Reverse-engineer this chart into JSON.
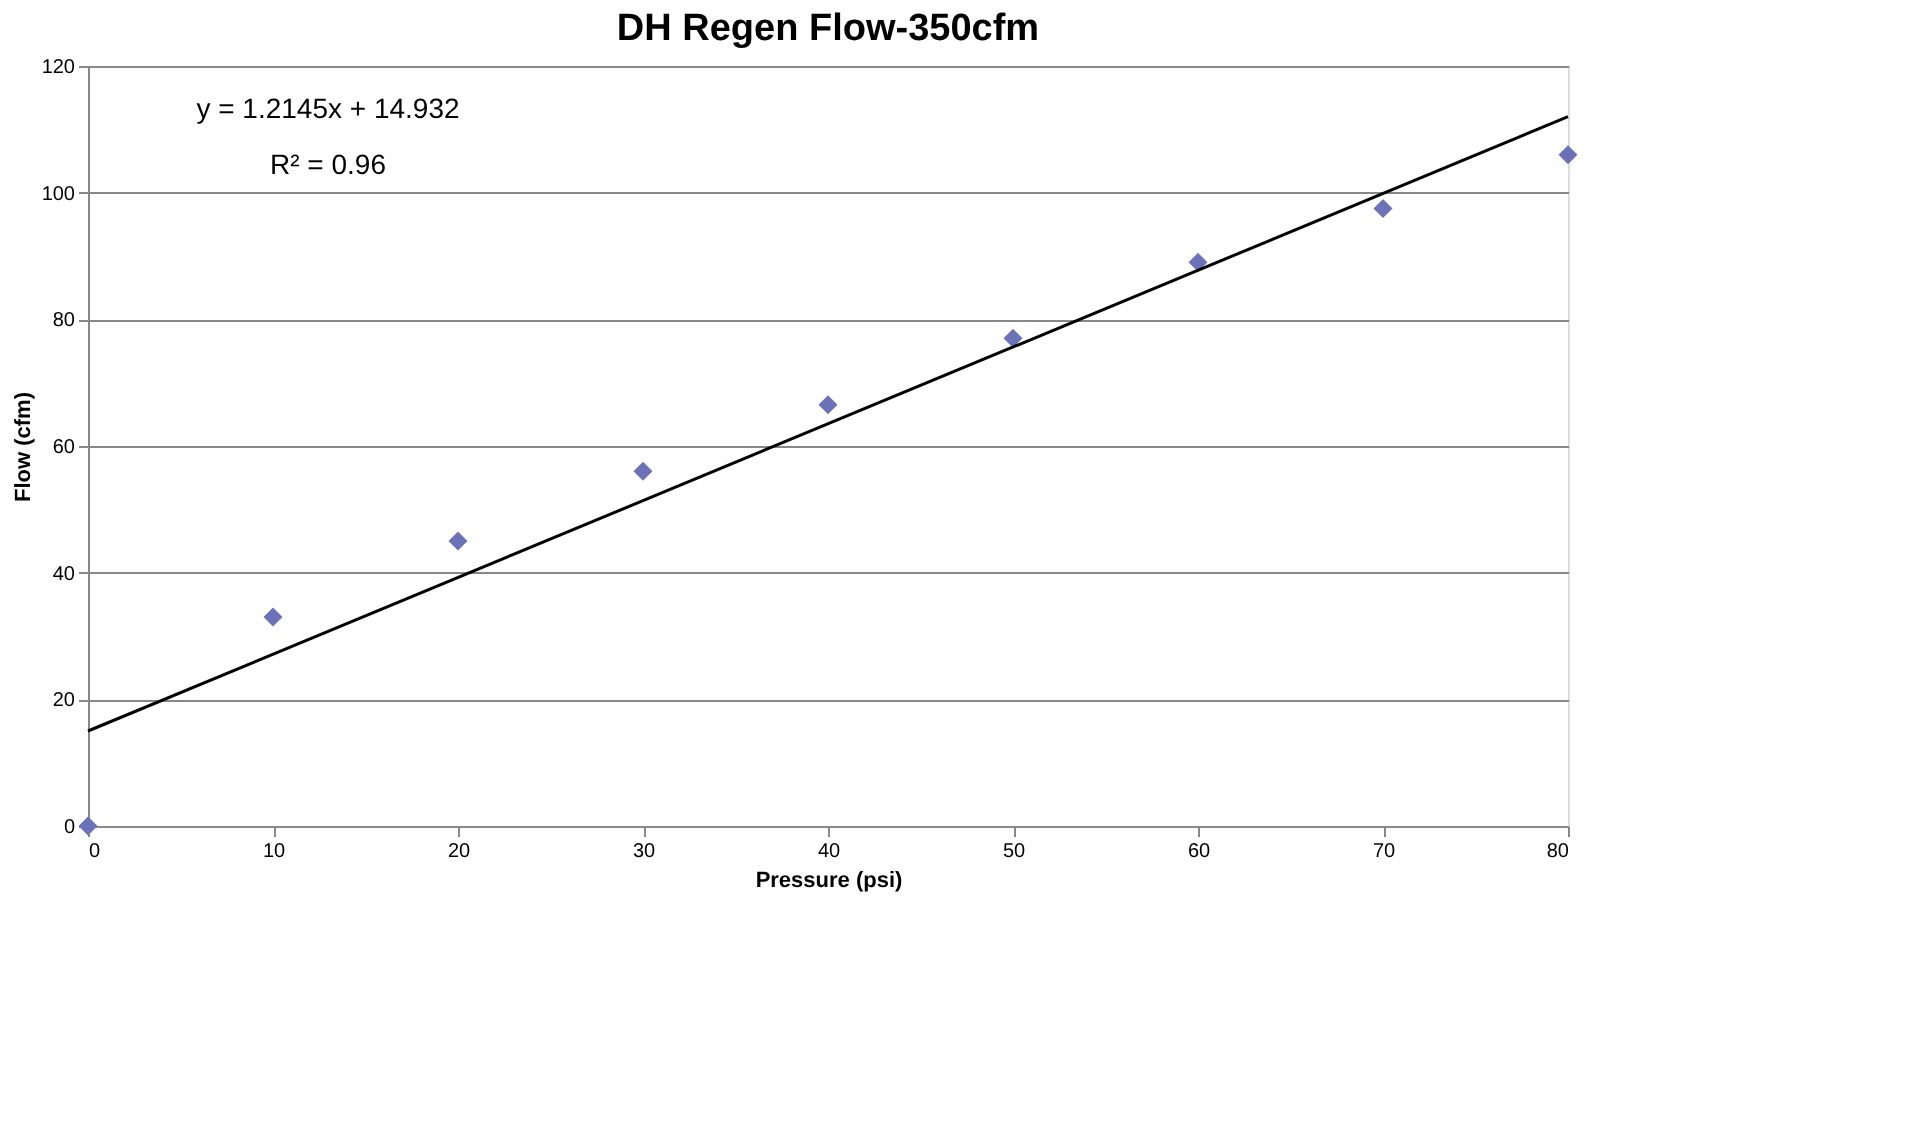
{
  "chart_data": {
    "type": "scatter",
    "title": "DH Regen Flow-350cfm",
    "xlabel": "Pressure (psi)",
    "ylabel": "Flow (cfm)",
    "x": [
      0,
      10,
      20,
      30,
      40,
      50,
      60,
      70,
      80
    ],
    "series": [
      {
        "color": "#6b72b8",
        "values": [
          0,
          33,
          45,
          56,
          66.5,
          77,
          89,
          97.5,
          106
        ],
        "marker": "diamond"
      },
      {
        "type": "line",
        "color": "#000000",
        "x": [
          0,
          80
        ],
        "values": [
          15,
          112
        ],
        "marker": "none",
        "line_style": "solid"
      }
    ],
    "annotations": [
      "y = 1.2145x + 14.932",
      "R² = 0.96"
    ],
    "xlim": [
      0,
      80
    ],
    "xticks": [
      0,
      10,
      20,
      30,
      40,
      50,
      60,
      70,
      80
    ],
    "ylim": [
      0,
      120
    ],
    "yticks": [
      0,
      20,
      40,
      60,
      80,
      100,
      120
    ],
    "grid": "y"
  }
}
